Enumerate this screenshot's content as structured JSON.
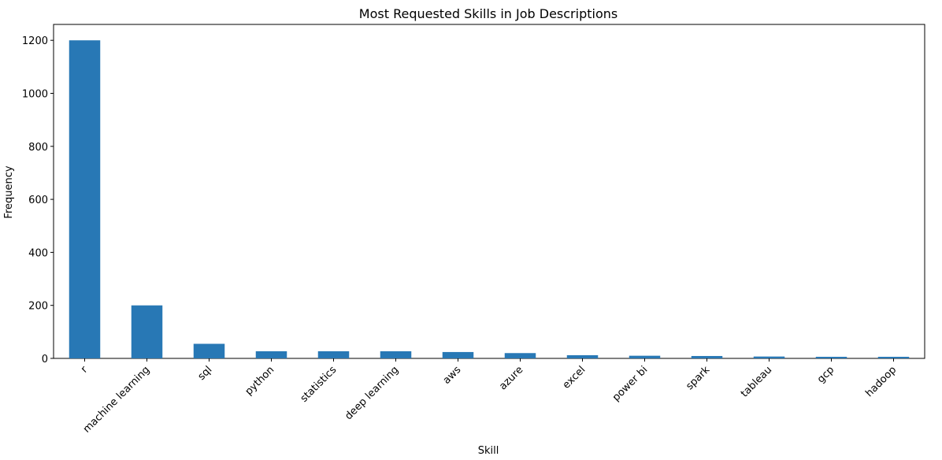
{
  "chart_data": {
    "type": "bar",
    "title": "Most Requested Skills in Job Descriptions",
    "xlabel": "Skill",
    "ylabel": "Frequency",
    "categories": [
      "r",
      "machine learning",
      "sql",
      "python",
      "statistics",
      "deep learning",
      "aws",
      "azure",
      "excel",
      "power bi",
      "spark",
      "tableau",
      "gcp",
      "hadoop"
    ],
    "values": [
      1200,
      200,
      55,
      27,
      27,
      27,
      24,
      20,
      12,
      10,
      9,
      7,
      6,
      6
    ],
    "ylim": [
      0,
      1260
    ],
    "yticks": [
      0,
      200,
      400,
      600,
      800,
      1000,
      1200
    ],
    "bar_color": "#2878b5",
    "grid": false,
    "legend": "none",
    "xtick_rotation": 45
  }
}
